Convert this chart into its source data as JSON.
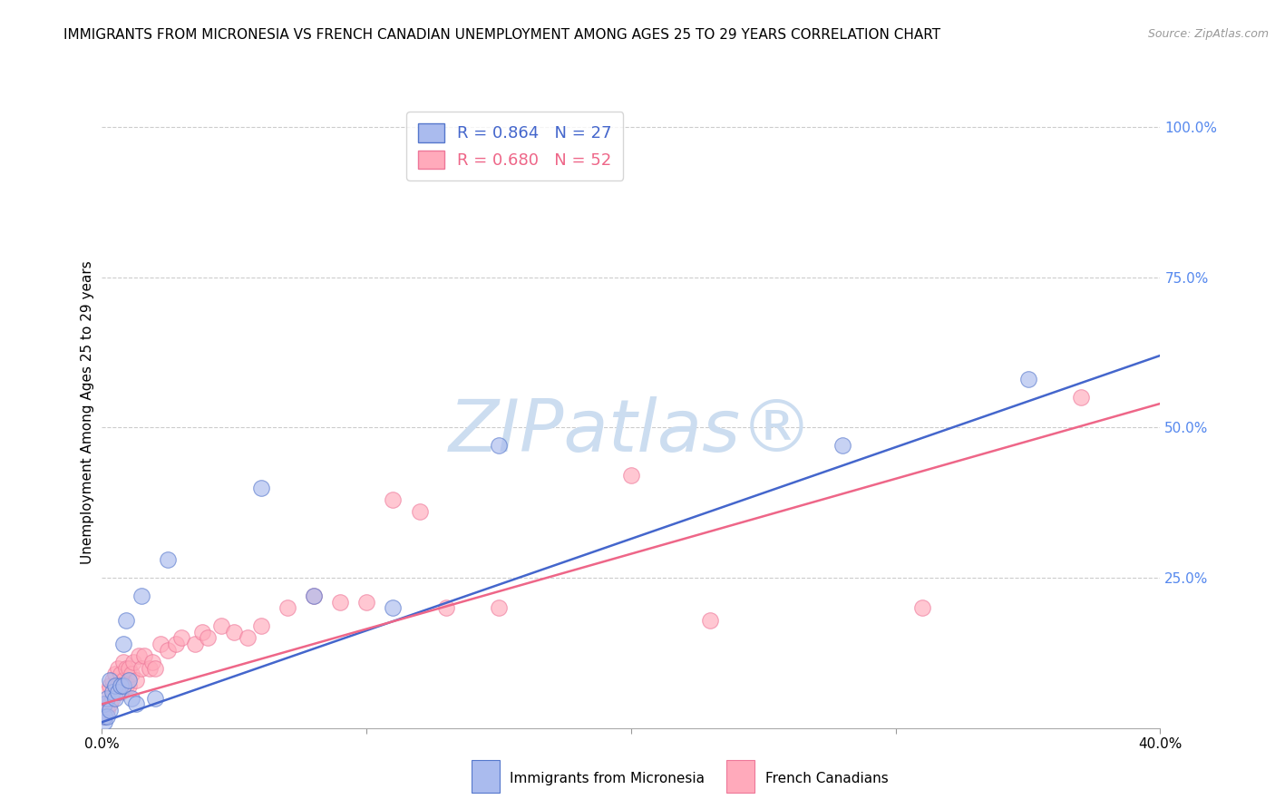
{
  "title": "IMMIGRANTS FROM MICRONESIA VS FRENCH CANADIAN UNEMPLOYMENT AMONG AGES 25 TO 29 YEARS CORRELATION CHART",
  "source": "Source: ZipAtlas.com",
  "ylabel": "Unemployment Among Ages 25 to 29 years",
  "xlim": [
    0.0,
    0.4
  ],
  "ylim": [
    0.0,
    1.05
  ],
  "x_ticks": [
    0.0,
    0.1,
    0.2,
    0.3,
    0.4
  ],
  "x_tick_labels": [
    "0.0%",
    "",
    "",
    "",
    "40.0%"
  ],
  "y_ticks_right": [
    0.0,
    0.25,
    0.5,
    0.75,
    1.0
  ],
  "y_tick_labels_right": [
    "",
    "25.0%",
    "50.0%",
    "75.0%",
    "100.0%"
  ],
  "blue_fill": "#AABBEE",
  "pink_fill": "#FFAABB",
  "blue_edge": "#5577CC",
  "pink_edge": "#EE7799",
  "blue_line_color": "#4466CC",
  "pink_line_color": "#EE6688",
  "blue_R": 0.864,
  "blue_N": 27,
  "pink_R": 0.68,
  "pink_N": 52,
  "blue_scatter_x": [
    0.001,
    0.001,
    0.001,
    0.002,
    0.002,
    0.003,
    0.003,
    0.004,
    0.005,
    0.005,
    0.006,
    0.007,
    0.008,
    0.008,
    0.009,
    0.01,
    0.011,
    0.013,
    0.015,
    0.02,
    0.025,
    0.06,
    0.08,
    0.11,
    0.15,
    0.28,
    0.35
  ],
  "blue_scatter_y": [
    0.01,
    0.02,
    0.04,
    0.02,
    0.05,
    0.03,
    0.08,
    0.06,
    0.05,
    0.07,
    0.06,
    0.07,
    0.07,
    0.14,
    0.18,
    0.08,
    0.05,
    0.04,
    0.22,
    0.05,
    0.28,
    0.4,
    0.22,
    0.2,
    0.47,
    0.47,
    0.58
  ],
  "pink_scatter_x": [
    0.001,
    0.001,
    0.002,
    0.002,
    0.003,
    0.003,
    0.004,
    0.004,
    0.005,
    0.005,
    0.006,
    0.006,
    0.007,
    0.007,
    0.008,
    0.008,
    0.009,
    0.009,
    0.01,
    0.01,
    0.011,
    0.012,
    0.013,
    0.014,
    0.015,
    0.016,
    0.018,
    0.019,
    0.02,
    0.022,
    0.025,
    0.028,
    0.03,
    0.035,
    0.038,
    0.04,
    0.045,
    0.05,
    0.055,
    0.06,
    0.07,
    0.08,
    0.09,
    0.1,
    0.11,
    0.12,
    0.13,
    0.15,
    0.2,
    0.23,
    0.31,
    0.37
  ],
  "pink_scatter_y": [
    0.02,
    0.04,
    0.03,
    0.06,
    0.04,
    0.07,
    0.05,
    0.08,
    0.06,
    0.09,
    0.07,
    0.1,
    0.06,
    0.09,
    0.08,
    0.11,
    0.07,
    0.1,
    0.07,
    0.1,
    0.09,
    0.11,
    0.08,
    0.12,
    0.1,
    0.12,
    0.1,
    0.11,
    0.1,
    0.14,
    0.13,
    0.14,
    0.15,
    0.14,
    0.16,
    0.15,
    0.17,
    0.16,
    0.15,
    0.17,
    0.2,
    0.22,
    0.21,
    0.21,
    0.38,
    0.36,
    0.2,
    0.2,
    0.42,
    0.18,
    0.2,
    0.55
  ],
  "blue_line_x": [
    0.0,
    0.4
  ],
  "blue_line_y": [
    0.01,
    0.62
  ],
  "pink_line_x": [
    0.0,
    0.4
  ],
  "pink_line_y": [
    0.04,
    0.54
  ],
  "legend_label_blue": "Immigrants from Micronesia",
  "legend_label_pink": "French Canadians",
  "bg_color": "#FFFFFF",
  "grid_color": "#CCCCCC",
  "watermark_color": "#CCDDF0",
  "title_fontsize": 11,
  "axis_label_fontsize": 11,
  "tick_fontsize": 11,
  "right_tick_color": "#5588EE",
  "scatter_size": 160,
  "scatter_alpha": 0.65
}
